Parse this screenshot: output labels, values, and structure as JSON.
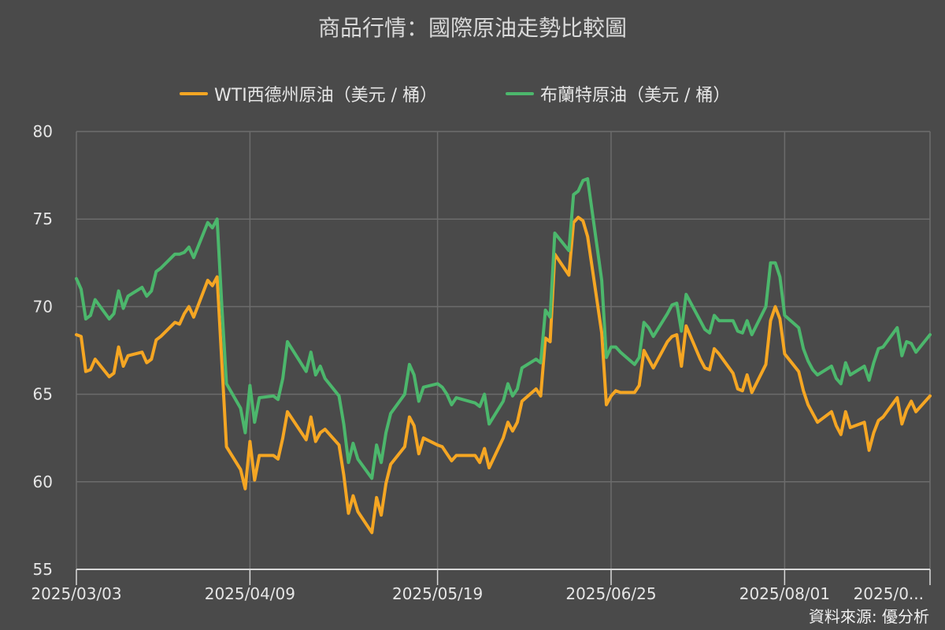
{
  "chart_data": {
    "type": "line",
    "title": "商品行情：國際原油走勢比較圖",
    "source": "資料來源: 優分析",
    "ylim": [
      55,
      80
    ],
    "yticks": [
      55,
      60,
      65,
      70,
      75,
      80
    ],
    "xlim": [
      "2025/03/03",
      "2025/09/01"
    ],
    "xticks": [
      {
        "date": "2025/03/03",
        "label": "2025/03/03"
      },
      {
        "date": "2025/04/09",
        "label": "2025/04/09"
      },
      {
        "date": "2025/05/19",
        "label": "2025/05/19"
      },
      {
        "date": "2025/06/25",
        "label": "2025/06/25"
      },
      {
        "date": "2025/08/01",
        "label": "2025/08/01"
      },
      {
        "date": "2025/09/01",
        "label": "2025/0..."
      }
    ],
    "grid": true,
    "legend_position": "top",
    "series": [
      {
        "name": "WTI西德州原油（美元 / 桶）",
        "color": "#f5a623",
        "points": [
          [
            "2025/03/03",
            68.4
          ],
          [
            "2025/03/04",
            68.3
          ],
          [
            "2025/03/05",
            66.3
          ],
          [
            "2025/03/06",
            66.4
          ],
          [
            "2025/03/07",
            67.0
          ],
          [
            "2025/03/10",
            66.0
          ],
          [
            "2025/03/11",
            66.2
          ],
          [
            "2025/03/12",
            67.7
          ],
          [
            "2025/03/13",
            66.6
          ],
          [
            "2025/03/14",
            67.2
          ],
          [
            "2025/03/17",
            67.4
          ],
          [
            "2025/03/18",
            66.8
          ],
          [
            "2025/03/19",
            67.0
          ],
          [
            "2025/03/20",
            68.1
          ],
          [
            "2025/03/21",
            68.3
          ],
          [
            "2025/03/24",
            69.1
          ],
          [
            "2025/03/25",
            69.0
          ],
          [
            "2025/03/26",
            69.6
          ],
          [
            "2025/03/27",
            70.0
          ],
          [
            "2025/03/28",
            69.4
          ],
          [
            "2025/03/31",
            71.5
          ],
          [
            "2025/04/01",
            71.2
          ],
          [
            "2025/04/02",
            71.7
          ],
          [
            "2025/04/03",
            66.9
          ],
          [
            "2025/04/04",
            62.0
          ],
          [
            "2025/04/07",
            60.7
          ],
          [
            "2025/04/08",
            59.6
          ],
          [
            "2025/04/09",
            62.3
          ],
          [
            "2025/04/10",
            60.1
          ],
          [
            "2025/04/11",
            61.5
          ],
          [
            "2025/04/14",
            61.5
          ],
          [
            "2025/04/15",
            61.3
          ],
          [
            "2025/04/16",
            62.5
          ],
          [
            "2025/04/17",
            64.0
          ],
          [
            "2025/04/21",
            62.4
          ],
          [
            "2025/04/22",
            63.7
          ],
          [
            "2025/04/23",
            62.3
          ],
          [
            "2025/04/24",
            62.8
          ],
          [
            "2025/04/25",
            63.0
          ],
          [
            "2025/04/28",
            62.1
          ],
          [
            "2025/04/29",
            60.4
          ],
          [
            "2025/04/30",
            58.2
          ],
          [
            "2025/05/01",
            59.2
          ],
          [
            "2025/05/02",
            58.3
          ],
          [
            "2025/05/05",
            57.1
          ],
          [
            "2025/05/06",
            59.1
          ],
          [
            "2025/05/07",
            58.1
          ],
          [
            "2025/05/08",
            59.9
          ],
          [
            "2025/05/09",
            61.0
          ],
          [
            "2025/05/12",
            62.0
          ],
          [
            "2025/05/13",
            63.7
          ],
          [
            "2025/05/14",
            63.2
          ],
          [
            "2025/05/15",
            61.6
          ],
          [
            "2025/05/16",
            62.5
          ],
          [
            "2025/05/19",
            62.1
          ],
          [
            "2025/05/20",
            62.0
          ],
          [
            "2025/05/21",
            61.6
          ],
          [
            "2025/05/22",
            61.2
          ],
          [
            "2025/05/23",
            61.5
          ],
          [
            "2025/05/27",
            61.5
          ],
          [
            "2025/05/28",
            61.1
          ],
          [
            "2025/05/29",
            61.9
          ],
          [
            "2025/05/30",
            60.8
          ],
          [
            "2025/06/02",
            62.5
          ],
          [
            "2025/06/03",
            63.4
          ],
          [
            "2025/06/04",
            62.9
          ],
          [
            "2025/06/05",
            63.4
          ],
          [
            "2025/06/06",
            64.6
          ],
          [
            "2025/06/09",
            65.3
          ],
          [
            "2025/06/10",
            64.9
          ],
          [
            "2025/06/11",
            68.2
          ],
          [
            "2025/06/12",
            68.0
          ],
          [
            "2025/06/13",
            73.0
          ],
          [
            "2025/06/16",
            71.8
          ],
          [
            "2025/06/17",
            74.8
          ],
          [
            "2025/06/18",
            75.1
          ],
          [
            "2025/06/19",
            74.9
          ],
          [
            "2025/06/20",
            74.0
          ],
          [
            "2025/06/23",
            68.5
          ],
          [
            "2025/06/24",
            64.4
          ],
          [
            "2025/06/25",
            64.9
          ],
          [
            "2025/06/26",
            65.2
          ],
          [
            "2025/06/27",
            65.1
          ],
          [
            "2025/06/30",
            65.1
          ],
          [
            "2025/07/01",
            65.5
          ],
          [
            "2025/07/02",
            67.5
          ],
          [
            "2025/07/03",
            67.0
          ],
          [
            "2025/07/04",
            66.5
          ],
          [
            "2025/07/07",
            68.0
          ],
          [
            "2025/07/08",
            68.3
          ],
          [
            "2025/07/09",
            68.4
          ],
          [
            "2025/07/10",
            66.6
          ],
          [
            "2025/07/11",
            68.9
          ],
          [
            "2025/07/14",
            67.0
          ],
          [
            "2025/07/15",
            66.5
          ],
          [
            "2025/07/16",
            66.4
          ],
          [
            "2025/07/17",
            67.6
          ],
          [
            "2025/07/18",
            67.3
          ],
          [
            "2025/07/21",
            66.2
          ],
          [
            "2025/07/22",
            65.3
          ],
          [
            "2025/07/23",
            65.2
          ],
          [
            "2025/07/24",
            66.1
          ],
          [
            "2025/07/25",
            65.1
          ],
          [
            "2025/07/28",
            66.7
          ],
          [
            "2025/07/29",
            69.2
          ],
          [
            "2025/07/30",
            70.0
          ],
          [
            "2025/07/31",
            69.3
          ],
          [
            "2025/08/01",
            67.3
          ],
          [
            "2025/08/04",
            66.3
          ],
          [
            "2025/08/05",
            65.2
          ],
          [
            "2025/08/06",
            64.4
          ],
          [
            "2025/08/07",
            63.9
          ],
          [
            "2025/08/08",
            63.4
          ],
          [
            "2025/08/11",
            64.0
          ],
          [
            "2025/08/12",
            63.2
          ],
          [
            "2025/08/13",
            62.7
          ],
          [
            "2025/08/14",
            64.0
          ],
          [
            "2025/08/15",
            63.1
          ],
          [
            "2025/08/18",
            63.4
          ],
          [
            "2025/08/19",
            61.8
          ],
          [
            "2025/08/20",
            62.8
          ],
          [
            "2025/08/21",
            63.5
          ],
          [
            "2025/08/22",
            63.7
          ],
          [
            "2025/08/25",
            64.8
          ],
          [
            "2025/08/26",
            63.3
          ],
          [
            "2025/08/27",
            64.1
          ],
          [
            "2025/08/28",
            64.6
          ],
          [
            "2025/08/29",
            64.0
          ],
          [
            "2025/09/01",
            64.9
          ]
        ]
      },
      {
        "name": "布蘭特原油（美元 / 桶）",
        "color": "#4cb76c",
        "points": [
          [
            "2025/03/03",
            71.6
          ],
          [
            "2025/03/04",
            71.0
          ],
          [
            "2025/03/05",
            69.3
          ],
          [
            "2025/03/06",
            69.5
          ],
          [
            "2025/03/07",
            70.4
          ],
          [
            "2025/03/10",
            69.3
          ],
          [
            "2025/03/11",
            69.6
          ],
          [
            "2025/03/12",
            70.9
          ],
          [
            "2025/03/13",
            69.9
          ],
          [
            "2025/03/14",
            70.6
          ],
          [
            "2025/03/17",
            71.1
          ],
          [
            "2025/03/18",
            70.6
          ],
          [
            "2025/03/19",
            70.9
          ],
          [
            "2025/03/20",
            72.0
          ],
          [
            "2025/03/21",
            72.2
          ],
          [
            "2025/03/24",
            73.0
          ],
          [
            "2025/03/25",
            73.0
          ],
          [
            "2025/03/26",
            73.1
          ],
          [
            "2025/03/27",
            73.4
          ],
          [
            "2025/03/28",
            72.8
          ],
          [
            "2025/03/31",
            74.8
          ],
          [
            "2025/04/01",
            74.5
          ],
          [
            "2025/04/02",
            75.0
          ],
          [
            "2025/04/03",
            70.1
          ],
          [
            "2025/04/04",
            65.6
          ],
          [
            "2025/04/07",
            64.2
          ],
          [
            "2025/04/08",
            62.8
          ],
          [
            "2025/04/09",
            65.5
          ],
          [
            "2025/04/10",
            63.4
          ],
          [
            "2025/04/11",
            64.8
          ],
          [
            "2025/04/14",
            64.9
          ],
          [
            "2025/04/15",
            64.7
          ],
          [
            "2025/04/16",
            65.9
          ],
          [
            "2025/04/17",
            68.0
          ],
          [
            "2025/04/21",
            66.3
          ],
          [
            "2025/04/22",
            67.4
          ],
          [
            "2025/04/23",
            66.1
          ],
          [
            "2025/04/24",
            66.6
          ],
          [
            "2025/04/25",
            65.9
          ],
          [
            "2025/04/28",
            64.9
          ],
          [
            "2025/04/29",
            63.3
          ],
          [
            "2025/04/30",
            61.1
          ],
          [
            "2025/05/01",
            62.2
          ],
          [
            "2025/05/02",
            61.3
          ],
          [
            "2025/05/05",
            60.2
          ],
          [
            "2025/05/06",
            62.1
          ],
          [
            "2025/05/07",
            61.1
          ],
          [
            "2025/05/08",
            62.8
          ],
          [
            "2025/05/09",
            63.9
          ],
          [
            "2025/05/12",
            65.0
          ],
          [
            "2025/05/13",
            66.7
          ],
          [
            "2025/05/14",
            66.1
          ],
          [
            "2025/05/15",
            64.6
          ],
          [
            "2025/05/16",
            65.4
          ],
          [
            "2025/05/19",
            65.6
          ],
          [
            "2025/05/20",
            65.4
          ],
          [
            "2025/05/21",
            65.0
          ],
          [
            "2025/05/22",
            64.4
          ],
          [
            "2025/05/23",
            64.8
          ],
          [
            "2025/05/27",
            64.5
          ],
          [
            "2025/05/28",
            64.3
          ],
          [
            "2025/05/29",
            65.0
          ],
          [
            "2025/05/30",
            63.3
          ],
          [
            "2025/06/02",
            64.6
          ],
          [
            "2025/06/03",
            65.6
          ],
          [
            "2025/06/04",
            64.9
          ],
          [
            "2025/06/05",
            65.3
          ],
          [
            "2025/06/06",
            66.5
          ],
          [
            "2025/06/09",
            67.0
          ],
          [
            "2025/06/10",
            66.8
          ],
          [
            "2025/06/11",
            69.8
          ],
          [
            "2025/06/12",
            69.4
          ],
          [
            "2025/06/13",
            74.2
          ],
          [
            "2025/06/16",
            73.2
          ],
          [
            "2025/06/17",
            76.4
          ],
          [
            "2025/06/18",
            76.6
          ],
          [
            "2025/06/19",
            77.2
          ],
          [
            "2025/06/20",
            77.3
          ],
          [
            "2025/06/23",
            71.5
          ],
          [
            "2025/06/24",
            67.1
          ],
          [
            "2025/06/25",
            67.7
          ],
          [
            "2025/06/26",
            67.7
          ],
          [
            "2025/06/27",
            67.4
          ],
          [
            "2025/06/30",
            66.7
          ],
          [
            "2025/07/01",
            67.1
          ],
          [
            "2025/07/02",
            69.1
          ],
          [
            "2025/07/03",
            68.8
          ],
          [
            "2025/07/04",
            68.3
          ],
          [
            "2025/07/07",
            69.6
          ],
          [
            "2025/07/08",
            70.1
          ],
          [
            "2025/07/09",
            70.2
          ],
          [
            "2025/07/10",
            68.6
          ],
          [
            "2025/07/11",
            70.7
          ],
          [
            "2025/07/14",
            69.2
          ],
          [
            "2025/07/15",
            68.7
          ],
          [
            "2025/07/16",
            68.5
          ],
          [
            "2025/07/17",
            69.5
          ],
          [
            "2025/07/18",
            69.2
          ],
          [
            "2025/07/21",
            69.2
          ],
          [
            "2025/07/22",
            68.6
          ],
          [
            "2025/07/23",
            68.5
          ],
          [
            "2025/07/24",
            69.2
          ],
          [
            "2025/07/25",
            68.4
          ],
          [
            "2025/07/28",
            70.0
          ],
          [
            "2025/07/29",
            72.5
          ],
          [
            "2025/07/30",
            72.5
          ],
          [
            "2025/07/31",
            71.7
          ],
          [
            "2025/08/01",
            69.5
          ],
          [
            "2025/08/04",
            68.8
          ],
          [
            "2025/08/05",
            67.6
          ],
          [
            "2025/08/06",
            66.9
          ],
          [
            "2025/08/07",
            66.4
          ],
          [
            "2025/08/08",
            66.1
          ],
          [
            "2025/08/11",
            66.6
          ],
          [
            "2025/08/12",
            65.9
          ],
          [
            "2025/08/13",
            65.6
          ],
          [
            "2025/08/14",
            66.8
          ],
          [
            "2025/08/15",
            66.1
          ],
          [
            "2025/08/18",
            66.6
          ],
          [
            "2025/08/19",
            65.8
          ],
          [
            "2025/08/20",
            66.8
          ],
          [
            "2025/08/21",
            67.6
          ],
          [
            "2025/08/22",
            67.7
          ],
          [
            "2025/08/25",
            68.8
          ],
          [
            "2025/08/26",
            67.2
          ],
          [
            "2025/08/27",
            68.0
          ],
          [
            "2025/08/28",
            67.9
          ],
          [
            "2025/08/29",
            67.4
          ],
          [
            "2025/09/01",
            68.4
          ]
        ]
      }
    ]
  }
}
